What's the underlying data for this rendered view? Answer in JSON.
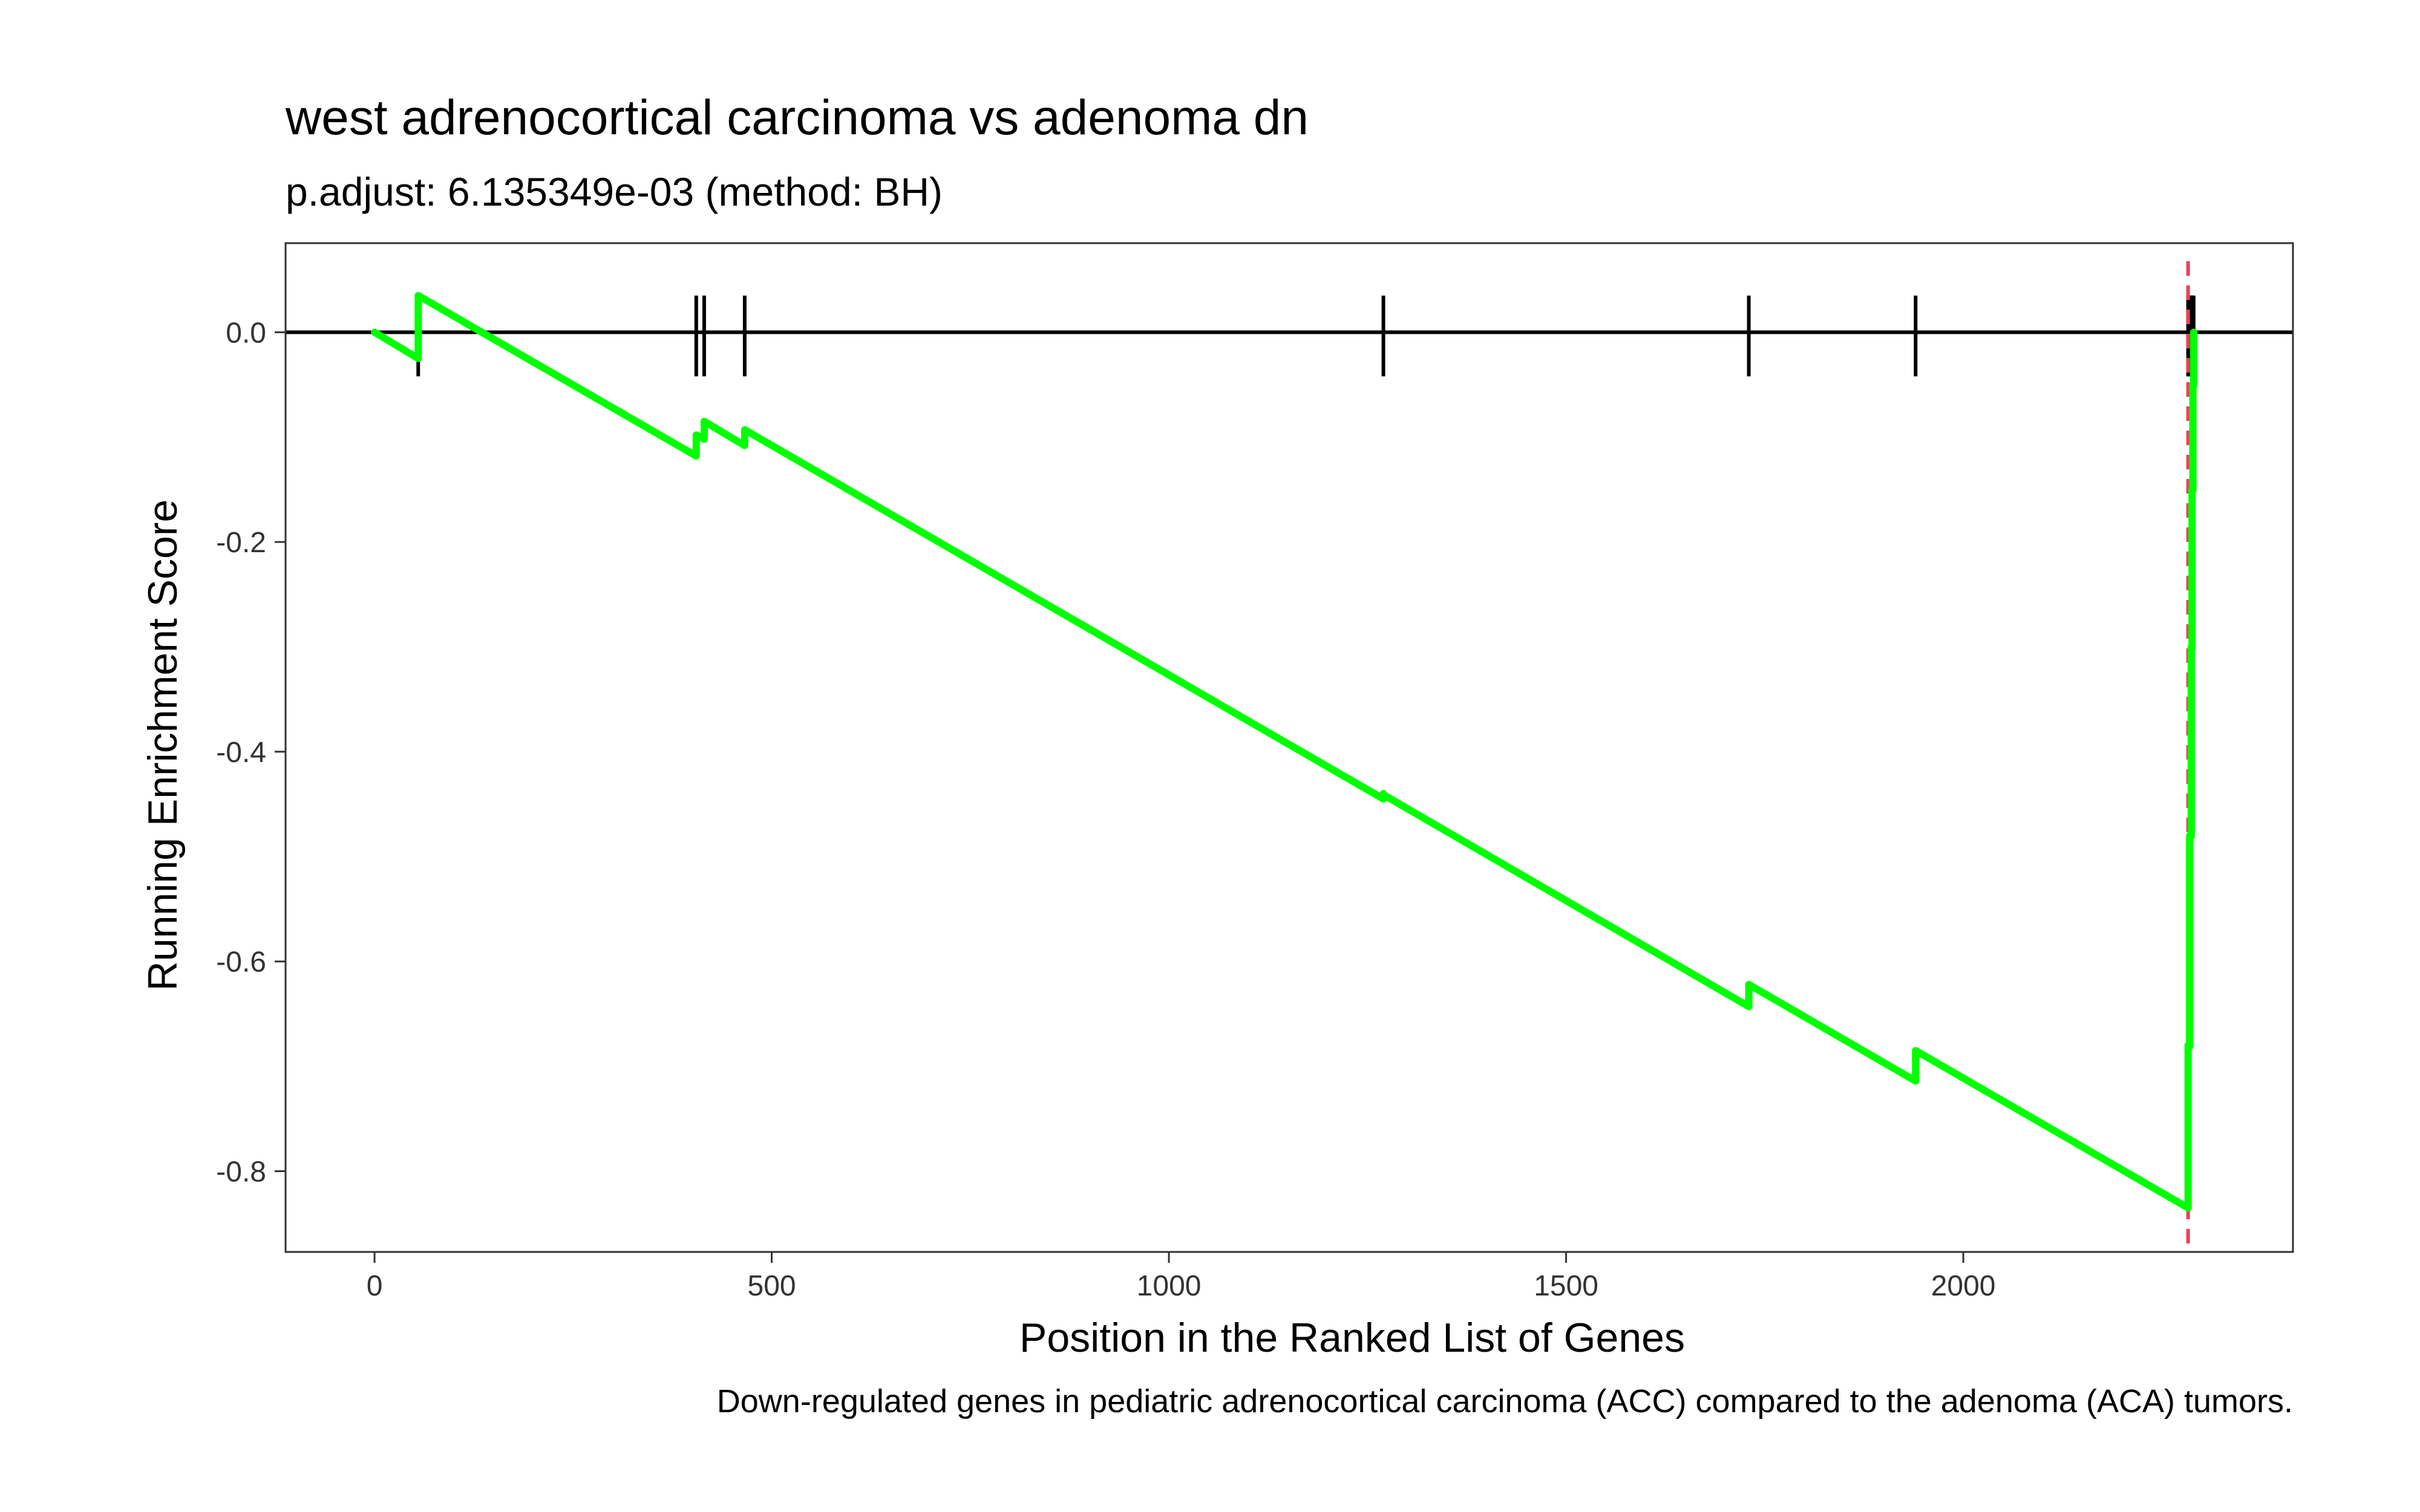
{
  "chart_data": {
    "type": "line",
    "title": "west adrenocortical carcinoma vs adenoma dn",
    "subtitle": "p.adjust: 6.135349e-03 (method: BH)",
    "xlabel": "Position in the Ranked List of Genes",
    "ylabel": "Running Enrichment Score",
    "caption": "Down-regulated genes in pediatric adrenocortical carcinoma (ACC) compared to the adenoma (ACA) tumors.",
    "xlim": [
      -112,
      2415
    ],
    "ylim": [
      -0.877,
      0.085
    ],
    "x_ticks": [
      0,
      500,
      1000,
      1500,
      2000
    ],
    "x_tick_labels": [
      "0",
      "500",
      "1000",
      "1500",
      "2000"
    ],
    "y_ticks": [
      0.0,
      -0.2,
      -0.4,
      -0.6,
      -0.8
    ],
    "y_tick_labels": [
      "0.0",
      "-0.2",
      "-0.4",
      "-0.6",
      "-0.8"
    ],
    "grid": false,
    "zero_line": 0,
    "series": [
      {
        "color": "#00FF00",
        "x": [
          0,
          55,
          55,
          405,
          405,
          415,
          415,
          466,
          466,
          1270,
          1270,
          1270,
          1730,
          1730,
          1940,
          1940,
          2283,
          2283,
          2285,
          2285,
          2287,
          2287,
          2288,
          2288,
          2289,
          2289,
          2290,
          2290
        ],
        "y": [
          0.0,
          -0.025,
          0.035,
          -0.118,
          -0.098,
          -0.102,
          -0.085,
          -0.108,
          -0.093,
          -0.445,
          -0.44,
          -0.441,
          -0.643,
          -0.622,
          -0.714,
          -0.685,
          -0.835,
          -0.68,
          -0.681,
          -0.48,
          -0.481,
          -0.3,
          -0.301,
          -0.15,
          -0.151,
          -0.05,
          -0.051,
          0.0
        ]
      }
    ],
    "hit_positions": [
      55,
      405,
      415,
      466,
      1270,
      1730,
      1940,
      2283,
      2284,
      2285,
      2286,
      2287,
      2288,
      2289,
      2290
    ],
    "hit_color": "#000000",
    "vline": {
      "x": 2283,
      "color": "#E8425A",
      "style": "dashed"
    }
  }
}
